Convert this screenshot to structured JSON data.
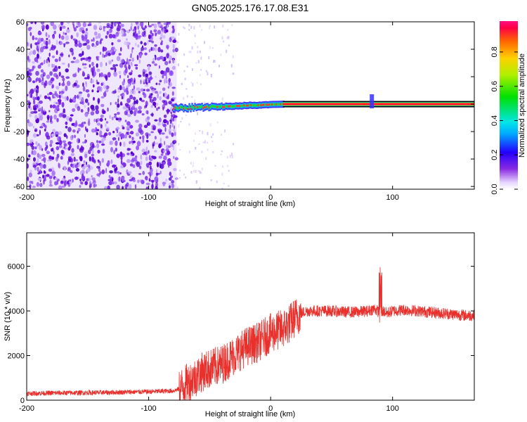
{
  "title": "GN05.2025.176.17.08.E31",
  "colors": {
    "line": "#e8302c",
    "axis": "#000000",
    "noise_purple": "#6a10e0",
    "light_purple": "#d9c8f7"
  },
  "colorbar": {
    "label": "Normalized spectral amplitude",
    "ticks": [
      "0.0",
      "0.2",
      "0.4",
      "0.6",
      "0.8"
    ],
    "tick_values": [
      0.0,
      0.2,
      0.4,
      0.6,
      0.8
    ],
    "range": [
      0,
      0.98
    ]
  },
  "chart_data": [
    {
      "type": "heatmap",
      "title": "GN05.2025.176.17.08.E31",
      "xlabel": "Height of straight line (km)",
      "ylabel": "Frequency (Hz)",
      "xlim": [
        -200,
        167
      ],
      "ylim": [
        -62,
        60
      ],
      "x_ticks": [
        -200,
        -100,
        0,
        100
      ],
      "x_tick_labels": [
        "-200",
        "-100",
        "0",
        "100"
      ],
      "y_ticks": [
        -60,
        -40,
        -20,
        0,
        20,
        40,
        60
      ],
      "y_tick_labels": [
        "-60",
        "-40",
        "-20",
        "0",
        "20",
        "40",
        "60"
      ],
      "colormap": "rainbow",
      "features": {
        "noise_region_x": [
          -200,
          -77
        ],
        "signal_line_x": [
          -80,
          167
        ],
        "signal_frequency_hz": 0,
        "spike_x": 83
      }
    },
    {
      "type": "line",
      "xlabel": "Height of straight line (km)",
      "ylabel": "SNR (10 * v/v)",
      "xlim": [
        -200,
        167
      ],
      "ylim": [
        0,
        7500
      ],
      "x_ticks": [
        -200,
        -100,
        0,
        100
      ],
      "x_tick_labels": [
        "-200",
        "-100",
        "0",
        "100"
      ],
      "y_ticks": [
        0,
        2000,
        4000,
        6000
      ],
      "y_tick_labels": [
        "0",
        "2000",
        "4000",
        "6000"
      ],
      "series": [
        {
          "x": [
            -200,
            -180,
            -160,
            -140,
            -120,
            -100,
            -90,
            -80,
            -75,
            -70,
            -65,
            -60,
            -55,
            -50,
            -45,
            -40,
            -35,
            -30,
            -25,
            -20,
            -15,
            -10,
            -5,
            0,
            5,
            10,
            15,
            20,
            25,
            30,
            40,
            50,
            60,
            70,
            80,
            85,
            90,
            92,
            95,
            100,
            110,
            120,
            130,
            140,
            150,
            160,
            167
          ],
          "values": [
            300,
            320,
            330,
            340,
            360,
            380,
            400,
            420,
            500,
            700,
            900,
            1100,
            1300,
            1400,
            1500,
            1600,
            1800,
            2000,
            2200,
            2400,
            2500,
            2600,
            2800,
            3000,
            3100,
            3200,
            3400,
            3700,
            3900,
            4000,
            4000,
            4000,
            3950,
            3950,
            4000,
            4100,
            3900,
            4000,
            3900,
            4000,
            4050,
            4000,
            3950,
            3900,
            3850,
            3800,
            3800
          ]
        }
      ]
    }
  ]
}
